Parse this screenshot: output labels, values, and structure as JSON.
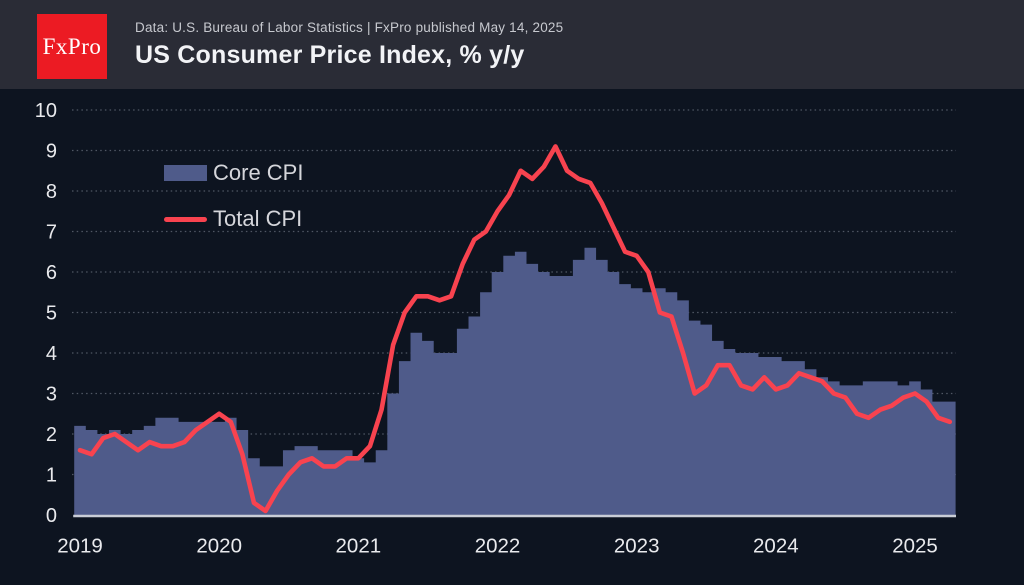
{
  "header": {
    "logo_text": "FxPro",
    "subtitle": "Data: U.S. Bureau of Labor Statistics | FxPro published May 14, 2025",
    "title": "US Consumer Price Index, % y/y"
  },
  "legend": {
    "core_label": "Core CPI",
    "total_label": "Total CPI"
  },
  "colors": {
    "background": "#0D1420",
    "header_bg": "#2A2C36",
    "logo_red": "#EC1B23",
    "bar": "#4F5B8A",
    "line": "#F8434F",
    "grid": "rgba(190,197,214,0.38)",
    "baseline": "#C9CDD6",
    "axis_text": "#E9EAED"
  },
  "chart_data": {
    "type": "bar+line",
    "title": "US Consumer Price Index, % y/y",
    "source_note": "Data: U.S. Bureau of Labor Statistics | FxPro published May 14, 2025",
    "x_start": "2019-01",
    "x_end": "2025-04",
    "frequency": "monthly",
    "ylim": [
      0,
      10
    ],
    "y_ticks": [
      0,
      1,
      2,
      3,
      4,
      5,
      6,
      7,
      8,
      9,
      10
    ],
    "x_tick_labels": [
      "2019",
      "2020",
      "2021",
      "2022",
      "2023",
      "2024",
      "2025"
    ],
    "grid": "dotted-horizontal",
    "legend_position": "upper-left-inside",
    "series": [
      {
        "name": "Core CPI",
        "type": "bar",
        "color": "#4F5B8A",
        "values": [
          2.2,
          2.1,
          2.0,
          2.1,
          2.0,
          2.1,
          2.2,
          2.4,
          2.4,
          2.3,
          2.3,
          2.3,
          2.3,
          2.4,
          2.1,
          1.4,
          1.2,
          1.2,
          1.6,
          1.7,
          1.7,
          1.6,
          1.6,
          1.6,
          1.4,
          1.3,
          1.6,
          3.0,
          3.8,
          4.5,
          4.3,
          4.0,
          4.0,
          4.6,
          4.9,
          5.5,
          6.0,
          6.4,
          6.5,
          6.2,
          6.0,
          5.9,
          5.9,
          6.3,
          6.6,
          6.3,
          6.0,
          5.7,
          5.6,
          5.5,
          5.6,
          5.5,
          5.3,
          4.8,
          4.7,
          4.3,
          4.1,
          4.0,
          4.0,
          3.9,
          3.9,
          3.8,
          3.8,
          3.6,
          3.4,
          3.3,
          3.2,
          3.2,
          3.3,
          3.3,
          3.3,
          3.2,
          3.3,
          3.1,
          2.8,
          2.8
        ]
      },
      {
        "name": "Total CPI",
        "type": "line",
        "color": "#F8434F",
        "values": [
          1.6,
          1.5,
          1.9,
          2.0,
          1.8,
          1.6,
          1.8,
          1.7,
          1.7,
          1.8,
          2.1,
          2.3,
          2.5,
          2.3,
          1.5,
          0.3,
          0.1,
          0.6,
          1.0,
          1.3,
          1.4,
          1.2,
          1.2,
          1.4,
          1.4,
          1.7,
          2.6,
          4.2,
          5.0,
          5.4,
          5.4,
          5.3,
          5.4,
          6.2,
          6.8,
          7.0,
          7.5,
          7.9,
          8.5,
          8.3,
          8.6,
          9.1,
          8.5,
          8.3,
          8.2,
          7.7,
          7.1,
          6.5,
          6.4,
          6.0,
          5.0,
          4.9,
          4.0,
          3.0,
          3.2,
          3.7,
          3.7,
          3.2,
          3.1,
          3.4,
          3.1,
          3.2,
          3.5,
          3.4,
          3.3,
          3.0,
          2.9,
          2.5,
          2.4,
          2.6,
          2.7,
          2.9,
          3.0,
          2.8,
          2.4,
          2.3
        ]
      }
    ]
  }
}
